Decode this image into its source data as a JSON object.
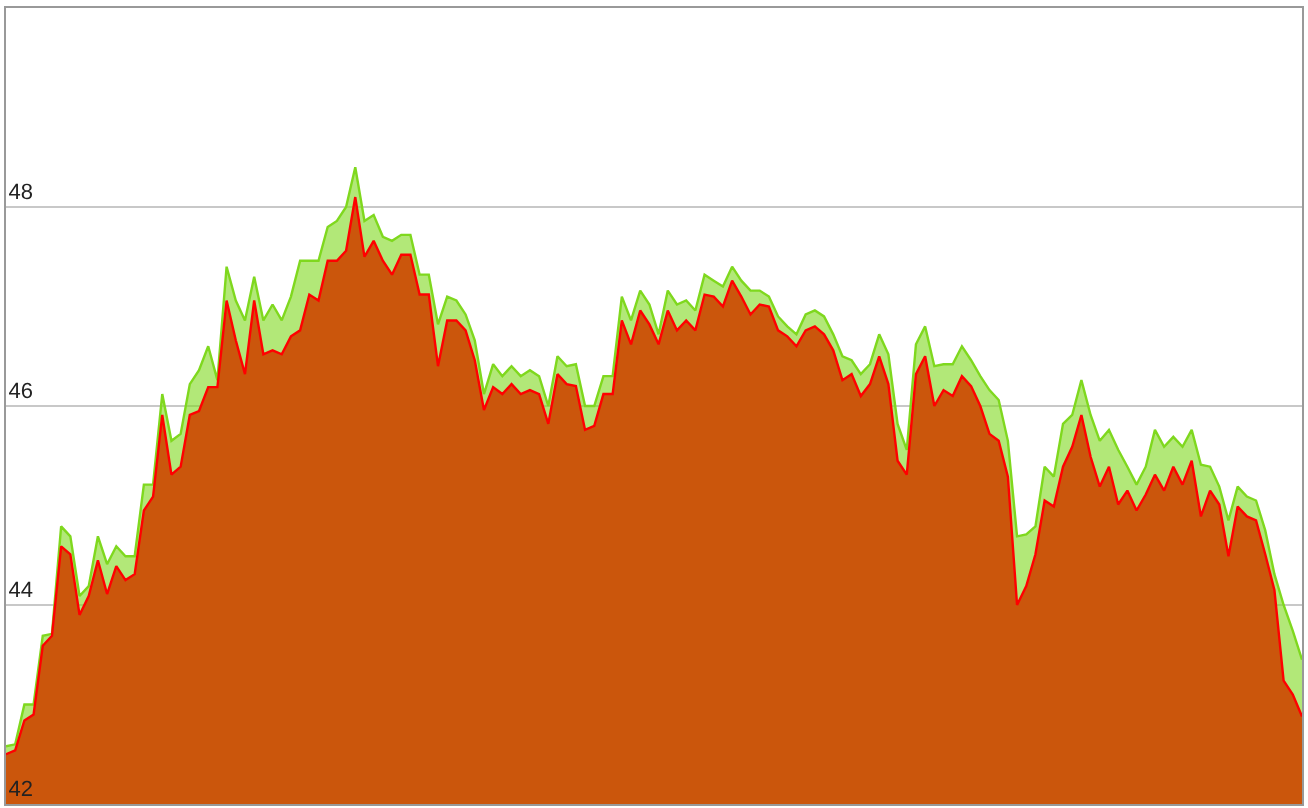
{
  "chart_data": {
    "type": "area",
    "categories": [
      null,
      null,
      null,
      null,
      null,
      null,
      null,
      null,
      null,
      null,
      null,
      null,
      null,
      null,
      null,
      null,
      null,
      null,
      null,
      null,
      null,
      null,
      null,
      null,
      null,
      null,
      null,
      null,
      null,
      null,
      null,
      null,
      null,
      null,
      null,
      null,
      null,
      null,
      null,
      null,
      null,
      null,
      null,
      null,
      null,
      null,
      null,
      null,
      null,
      null,
      null,
      null,
      null,
      null,
      null,
      null,
      null,
      null,
      null,
      null,
      null,
      null,
      null,
      null,
      null,
      null,
      null,
      null,
      null,
      null,
      null,
      null,
      null,
      null,
      null,
      null,
      null,
      null,
      null,
      null,
      null,
      null,
      null,
      null,
      null,
      null,
      null,
      null,
      null,
      null,
      null,
      null,
      null,
      null,
      null,
      null,
      null,
      null,
      null,
      null,
      null,
      null,
      null,
      null,
      null,
      null,
      null,
      null,
      null,
      null,
      null,
      null,
      null,
      null,
      null,
      null,
      null,
      null,
      null,
      null,
      null,
      null,
      null,
      null,
      null,
      null,
      null,
      null,
      null,
      null,
      null,
      null,
      null,
      null,
      null,
      null,
      null,
      null,
      null,
      null,
      null,
      null
    ],
    "series": [
      {
        "color": "#7fd81e",
        "values": [
          42.58,
          42.6,
          43.0,
          43.0,
          43.69,
          43.71,
          44.79,
          44.69,
          44.09,
          44.19,
          44.69,
          44.41,
          44.59,
          44.49,
          44.49,
          45.21,
          45.21,
          46.12,
          45.65,
          45.72,
          46.22,
          46.36,
          46.6,
          46.26,
          47.4,
          47.06,
          46.86,
          47.3,
          46.86,
          47.02,
          46.86,
          47.1,
          47.46,
          47.46,
          47.46,
          47.8,
          47.86,
          48.0,
          48.4,
          47.86,
          47.92,
          47.7,
          47.66,
          47.72,
          47.72,
          47.32,
          47.32,
          46.82,
          47.1,
          47.06,
          46.92,
          46.66,
          46.12,
          46.42,
          46.3,
          46.4,
          46.3,
          46.36,
          46.3,
          46.0,
          46.5,
          46.4,
          46.42,
          46.0,
          46.0,
          46.3,
          46.3,
          47.1,
          46.86,
          47.16,
          47.02,
          46.72,
          47.16,
          47.02,
          47.06,
          46.96,
          47.32,
          47.26,
          47.2,
          47.4,
          47.26,
          47.16,
          47.16,
          47.1,
          46.9,
          46.8,
          46.72,
          46.92,
          46.96,
          46.9,
          46.72,
          46.5,
          46.46,
          46.32,
          46.42,
          46.72,
          46.52,
          45.82,
          45.56,
          46.62,
          46.8,
          46.4,
          46.42,
          46.42,
          46.6,
          46.46,
          46.3,
          46.16,
          46.06,
          45.65,
          44.69,
          44.71,
          44.79,
          45.39,
          45.29,
          45.82,
          45.91,
          46.26,
          45.91,
          45.65,
          45.76,
          45.56,
          45.39,
          45.21,
          45.39,
          45.76,
          45.59,
          45.69,
          45.59,
          45.76,
          45.41,
          45.39,
          45.19,
          44.85,
          45.19,
          45.09,
          45.05,
          44.75,
          44.31,
          44.0,
          43.74,
          43.45
        ]
      },
      {
        "color": "#ff0000",
        "values": [
          42.5,
          42.54,
          42.84,
          42.9,
          43.59,
          43.69,
          44.59,
          44.51,
          43.9,
          44.09,
          44.45,
          44.11,
          44.39,
          44.25,
          44.31,
          44.95,
          45.09,
          45.91,
          45.31,
          45.39,
          45.91,
          45.95,
          46.19,
          46.19,
          47.06,
          46.66,
          46.32,
          47.06,
          46.52,
          46.56,
          46.52,
          46.7,
          46.76,
          47.12,
          47.06,
          47.46,
          47.46,
          47.56,
          48.1,
          47.5,
          47.66,
          47.46,
          47.32,
          47.52,
          47.52,
          47.12,
          47.12,
          46.4,
          46.86,
          46.86,
          46.76,
          46.46,
          45.96,
          46.19,
          46.12,
          46.22,
          46.12,
          46.16,
          46.12,
          45.82,
          46.32,
          46.22,
          46.2,
          45.76,
          45.8,
          46.12,
          46.12,
          46.86,
          46.62,
          46.96,
          46.82,
          46.62,
          46.96,
          46.76,
          46.86,
          46.76,
          47.12,
          47.1,
          47.0,
          47.26,
          47.1,
          46.92,
          47.02,
          47.0,
          46.76,
          46.7,
          46.6,
          46.76,
          46.8,
          46.72,
          46.56,
          46.26,
          46.32,
          46.1,
          46.22,
          46.5,
          46.22,
          45.45,
          45.31,
          46.32,
          46.5,
          46.0,
          46.16,
          46.1,
          46.3,
          46.2,
          46.0,
          45.72,
          45.65,
          45.29,
          44.0,
          44.19,
          44.51,
          45.05,
          44.99,
          45.39,
          45.59,
          45.91,
          45.49,
          45.19,
          45.39,
          45.01,
          45.15,
          44.95,
          45.11,
          45.31,
          45.15,
          45.39,
          45.21,
          45.45,
          44.89,
          45.15,
          45.01,
          44.49,
          44.99,
          44.89,
          44.85,
          44.51,
          44.15,
          43.24,
          43.1,
          42.88
        ]
      }
    ],
    "ylim": [
      42,
      50
    ],
    "yticks": [
      42,
      44,
      46,
      48
    ],
    "tick_labels": "y",
    "grid": "y"
  }
}
